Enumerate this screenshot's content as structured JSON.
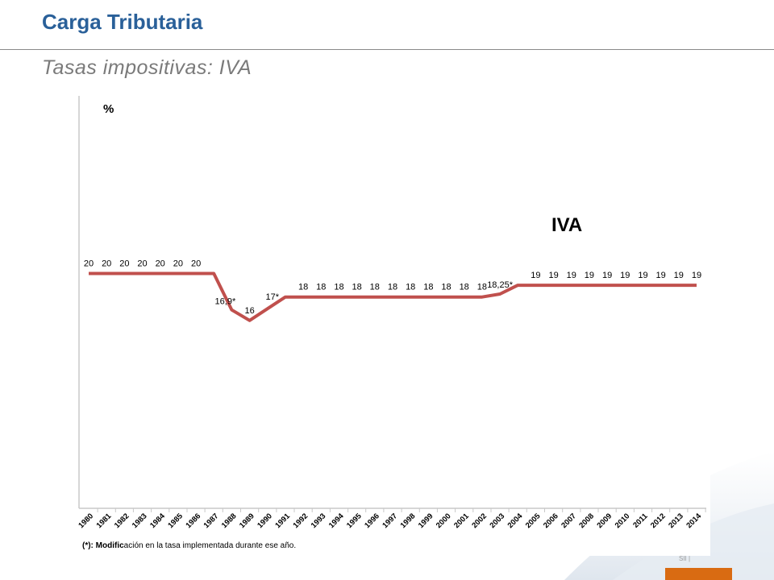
{
  "slide": {
    "title": "Carga Tributaria",
    "subtitle": "Tasas impositivas: IVA",
    "footer_label": "SII  |",
    "accent_color": "#d96b12",
    "title_color": "#2a6099"
  },
  "chart_data": {
    "type": "line",
    "ylabel": "%",
    "series_label_text": "IVA",
    "line_color": "#c0504d",
    "x": [
      "1980",
      "1981",
      "1982",
      "1983",
      "1984",
      "1985",
      "1986",
      "1987",
      "1988",
      "1989",
      "1990",
      "1991",
      "1992",
      "1993",
      "1994",
      "1995",
      "1996",
      "1997",
      "1998",
      "1999",
      "2000",
      "2001",
      "2002",
      "2003",
      "2004",
      "2005",
      "2006",
      "2007",
      "2008",
      "2009",
      "2010",
      "2011",
      "2012",
      "2013",
      "2014"
    ],
    "series": [
      {
        "name": "IVA",
        "values": [
          20,
          20,
          20,
          20,
          20,
          20,
          20,
          20,
          16.9,
          16,
          17,
          18,
          18,
          18,
          18,
          18,
          18,
          18,
          18,
          18,
          18,
          18,
          18,
          18.25,
          19,
          19,
          19,
          19,
          19,
          19,
          19,
          19,
          19,
          19,
          19
        ]
      }
    ],
    "data_labels": [
      "20",
      "20",
      "20",
      "20",
      "20",
      "20",
      "20",
      "",
      "16,9*",
      "16",
      "17*",
      "",
      "18",
      "18",
      "18",
      "18",
      "18",
      "18",
      "18",
      "18",
      "18",
      "18",
      "18",
      "18,25*",
      "",
      "19",
      "19",
      "19",
      "19",
      "19",
      "19",
      "19",
      "19",
      "19",
      "19"
    ],
    "ylim": [
      0,
      28
    ],
    "grid": false,
    "footnote_bold": "(*): Modific",
    "footnote_rest": "ación en la tasa implementada durante ese año."
  }
}
